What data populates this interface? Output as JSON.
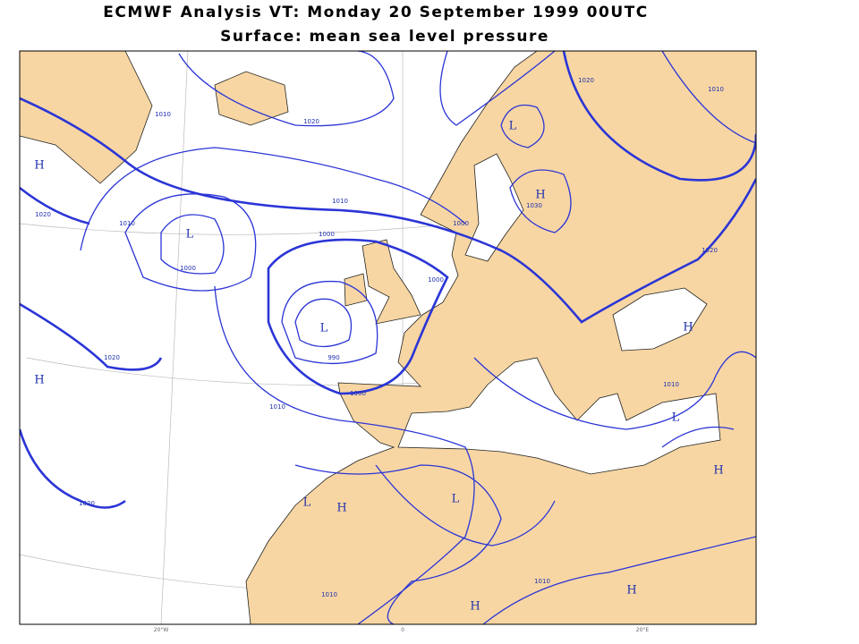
{
  "header": {
    "title": "ECMWF  Analysis VT: Monday 20 September 1999 00UTC",
    "subtitle": "Surface:  mean sea level pressure"
  },
  "pressure_centers": [
    "H",
    "L",
    "L",
    "L",
    "H",
    "H",
    "H",
    "L",
    "H",
    "L",
    "H",
    "L",
    "H",
    "H"
  ],
  "isobar_labels": [
    "1010",
    "1020",
    "1010",
    "1000",
    "1010",
    "1000",
    "1020",
    "1000",
    "990",
    "1000",
    "1010",
    "1020",
    "1020",
    "1010",
    "1010",
    "1010",
    "1020",
    "1020",
    "1010",
    "1000",
    "1030"
  ],
  "graticule_labels": [
    "20°W",
    "0",
    "20°E"
  ]
}
